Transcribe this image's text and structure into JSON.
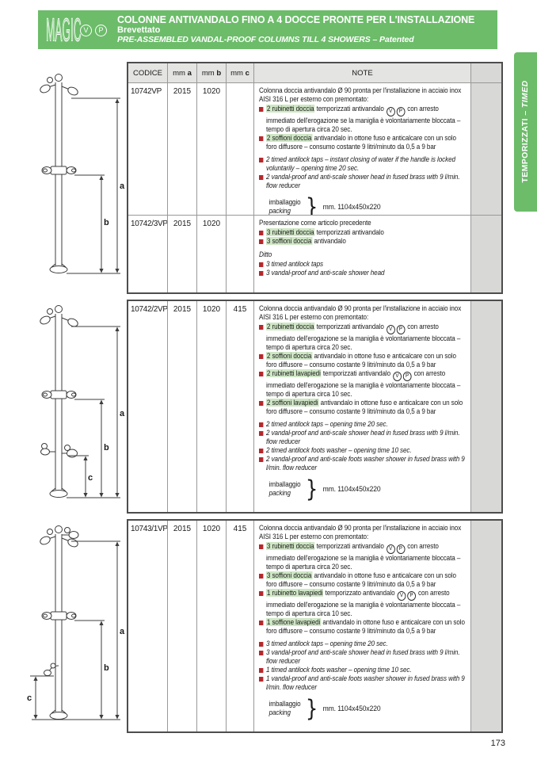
{
  "header": {
    "logo": "MAGIC",
    "badges": [
      "V",
      "P"
    ],
    "title": "COLONNE ANTIVANDALO FINO A 4 DOCCE PRONTE PER L'INSTALLAZIONE",
    "subtitle": "Brevettato",
    "subtitle_en": "PRE-ASSEMBLED VANDAL-PROOF COLUMNS TILL 4 SHOWERS – Patented"
  },
  "side_tab": {
    "label_it": "TEMPORIZZATI",
    "separator": "–",
    "label_en": "TIMED"
  },
  "table_header": {
    "codice": "CODICE",
    "mm_prefix": "mm",
    "a": "a",
    "b": "b",
    "c": "c",
    "note": "NOTE"
  },
  "colors": {
    "green": "#6cbc6a",
    "highlight": "#cfe7c5",
    "bullet_red": "#b5282c"
  },
  "drawings": [
    {
      "dims": [
        "a",
        "b"
      ],
      "description": "column with 2 shower heads and mid tap"
    },
    {
      "dims": [
        "a",
        "b",
        "c"
      ],
      "description": "column with 2 shower heads, mid tap and double foot washer"
    },
    {
      "dims": [
        "a",
        "b",
        "c"
      ],
      "description": "column with 3 shower heads, mid tap and single foot washer"
    }
  ],
  "products": [
    {
      "code": "10742VP",
      "mm_a": "2015",
      "mm_b": "1020",
      "mm_c": "",
      "intro": "Colonna doccia antivandalo Ø 90 pronta per l'installazione in acciaio inox AISI 316 L per esterno con premontato:",
      "it_items": [
        {
          "hl": "2 rubinetti doccia",
          "text": "temporizzati antivandalo {VP} con arresto immediato dell'erogazione se la maniglia è volontariamente bloccata – tempo di apertura circa 20 sec."
        },
        {
          "hl": "2 soffioni doccia",
          "text": "antivandalo in ottone fuso e anticalcare con un solo foro diffusore – consumo costante 9 litri/minuto da 0,5 a 9 bar"
        }
      ],
      "en_items": [
        "2 timed antilock taps – instant closing of water if the handle is locked voluntarily – opening time 20 sec.",
        "2 vandal-proof and anti-scale shower head in fused brass with 9 l/min. flow reducer"
      ],
      "packing": {
        "label_it": "imballaggio",
        "label_en": "packing",
        "dims": "mm. 1104x450x220"
      }
    },
    {
      "code": "10742/3VP",
      "mm_a": "2015",
      "mm_b": "1020",
      "mm_c": "",
      "intro": "Presentazione come articolo precedente",
      "it_items": [
        {
          "hl": "3 rubinetti doccia",
          "text": "temporizzati antivandalo"
        },
        {
          "hl": "3 soffioni doccia",
          "text": "antivandalo"
        }
      ],
      "ditto": "Ditto",
      "en_items": [
        "3 timed antilock taps",
        "3 vandal-proof and anti-scale shower head"
      ]
    },
    {
      "code": "10742/2VP",
      "mm_a": "2015",
      "mm_b": "1020",
      "mm_c": "415",
      "intro": "Colonna doccia antivandalo Ø 90 pronta per l'installazione in acciaio inox AISI 316 L per esterno con premontato:",
      "it_items": [
        {
          "hl": "2 rubinetti doccia",
          "text": "temporizzati antivandalo {VP} con arresto immediato dell'erogazione se la maniglia è volontariamente bloccata – tempo di apertura circa 20 sec."
        },
        {
          "hl": "2 soffioni doccia",
          "text": "antivandalo in ottone fuso e anticalcare con un solo foro diffusore – consumo costante 9 litri/minuto da 0,5 a 9 bar"
        },
        {
          "hl": "2 rubinetti lavapiedi",
          "text": "temporizzati antivandalo {VP} con arresto immediato dell'erogazione se la maniglia è volontariamente bloccata – tempo di apertura circa 10 sec."
        },
        {
          "hl": "2 soffioni lavapiedi",
          "text": "antivandalo in ottone fuso e anticalcare con un solo foro diffusore – consumo costante 9 litri/minuto da 0,5 a 9 bar"
        }
      ],
      "en_items": [
        "2 timed antilock taps – opening time 20 sec.",
        "2 vandal-proof and anti-scale shower head in fused brass with 9 l/min. flow reducer",
        "2 timed antilock foots washer – opening time 10 sec.",
        "2 vandal-proof and anti-scale foots washer shower in fused brass with 9 l/min. flow reducer"
      ],
      "packing": {
        "label_it": "imballaggio",
        "label_en": "packing",
        "dims": "mm. 1104x450x220"
      }
    },
    {
      "code": "10743/1VP",
      "mm_a": "2015",
      "mm_b": "1020",
      "mm_c": "415",
      "intro": "Colonna doccia antivandalo Ø 90 pronta per l'installazione in acciaio inox AISI 316 L per esterno con premontato:",
      "it_items": [
        {
          "hl": "3 rubinetti doccia",
          "text": "temporizzati antivandalo {VP} con arresto immediato dell'erogazione se la maniglia è volontariamente bloccata – tempo di apertura circa 20 sec."
        },
        {
          "hl": "3 soffioni doccia",
          "text": "antivandalo in ottone fuso e anticalcare con un solo foro diffusore – consumo costante 9 litri/minuto da 0,5 a 9 bar"
        },
        {
          "hl": "1 rubinetto lavapiedi",
          "text": "temporizzato antivandalo {VP} con arresto immediato dell'erogazione se la maniglia è volontariamente bloccata – tempo di apertura circa 10 sec."
        },
        {
          "hl": "1 soffione lavapiedi",
          "text": "antivandalo in ottone fuso e anticalcare con un solo foro diffusore – consumo costante 9 litri/minuto da 0,5 a 9 bar"
        }
      ],
      "en_items": [
        "3 timed antilock taps – opening time 20 sec.",
        "3 vandal-proof and anti-scale shower head in fused brass with 9 l/min. flow reducer",
        "1 timed antilock foots washer – opening time 10 sec.",
        "1 vandal-proof and anti-scale foots washer shower in fused brass with 9 l/min. flow reducer"
      ],
      "packing": {
        "label_it": "imballaggio",
        "label_en": "packing",
        "dims": "mm. 1104x450x220"
      }
    }
  ],
  "page": {
    "number": "173"
  }
}
